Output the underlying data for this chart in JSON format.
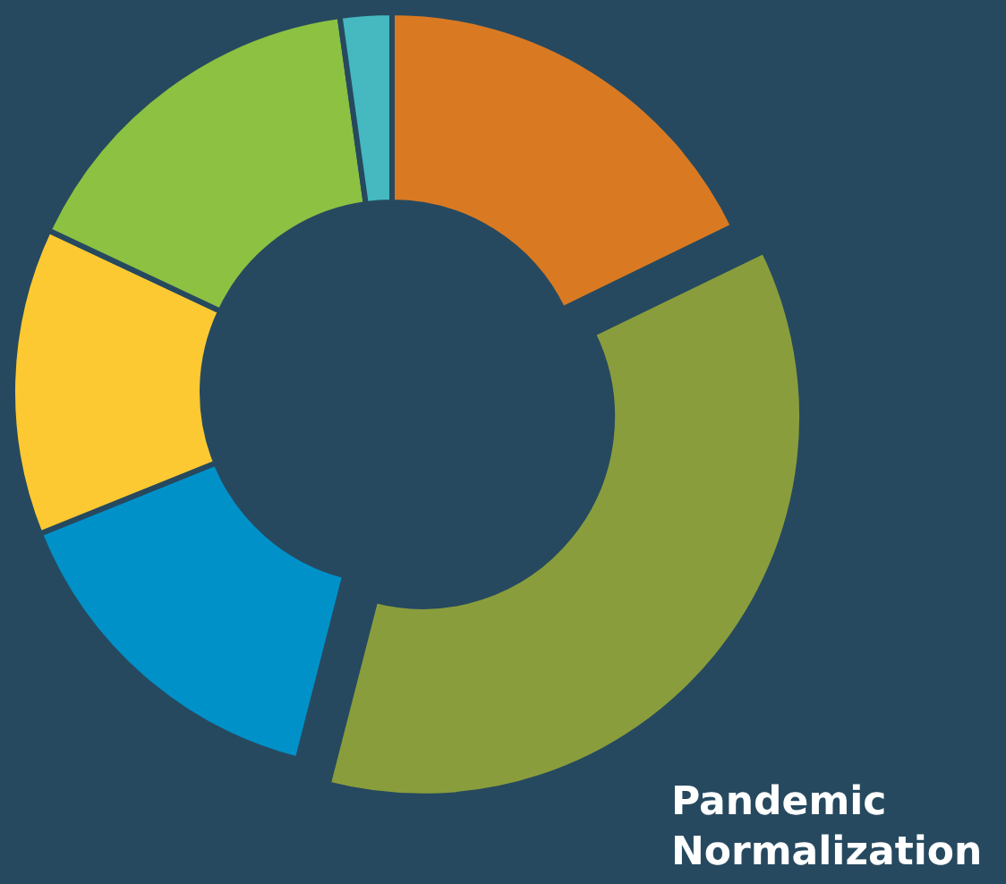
{
  "chart_data": {
    "type": "donut",
    "categories": [
      null,
      "Pandemic Normalization",
      null,
      null,
      null,
      null
    ],
    "values": [
      17.8,
      36.2,
      14.9,
      13.1,
      15.8,
      2.2
    ],
    "colors": [
      "#d97a22",
      "#8a9d3c",
      "#0091c9",
      "#fcc932",
      "#8cc142",
      "#45b8c0"
    ]
  }
}
